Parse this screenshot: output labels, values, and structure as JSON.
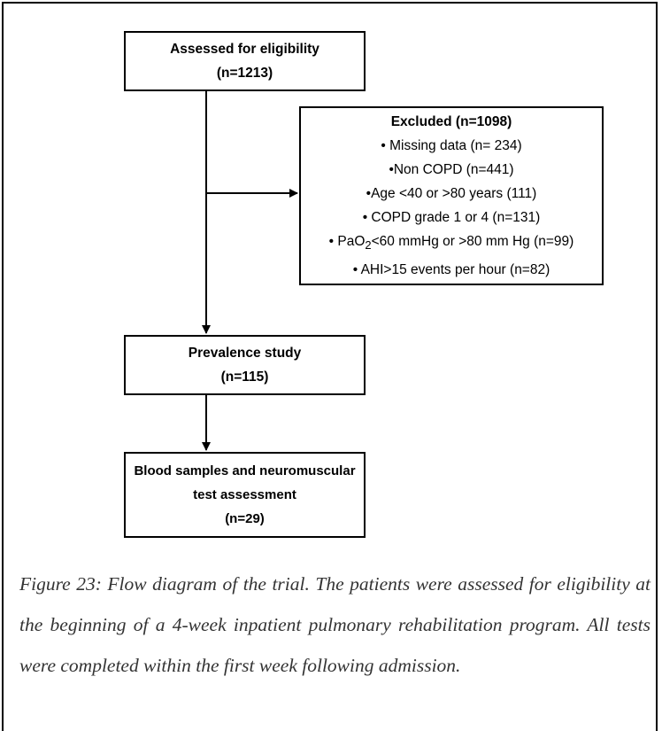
{
  "boxes": {
    "assessed": {
      "title": "Assessed for eligibility",
      "count": "(n=1213)"
    },
    "excluded": {
      "title": "Excluded (n=1098)",
      "items": [
        "• Missing data (n= 234)",
        "•Non COPD (n=441)",
        "•Age <40 or >80 years (111)",
        "• COPD grade 1 or 4 (n=131)",
        {
          "prefix": "• PaO",
          "sub": "2",
          "suffix": "<60 mmHg or >80 mm Hg (n=99)"
        },
        "• AHI>15 events per hour (n=82)"
      ]
    },
    "prevalence": {
      "title": "Prevalence study",
      "count": "(n=115)"
    },
    "blood": {
      "title_lines": [
        "Blood samples and neuromuscular",
        "test assessment"
      ],
      "count": "(n=29)"
    }
  },
  "caption": "Figure 23: Flow diagram of the trial. The patients were assessed for eligibility at the beginning of a 4-week inpatient pulmonary rehabilitation program. All tests were completed within the first week following admission."
}
